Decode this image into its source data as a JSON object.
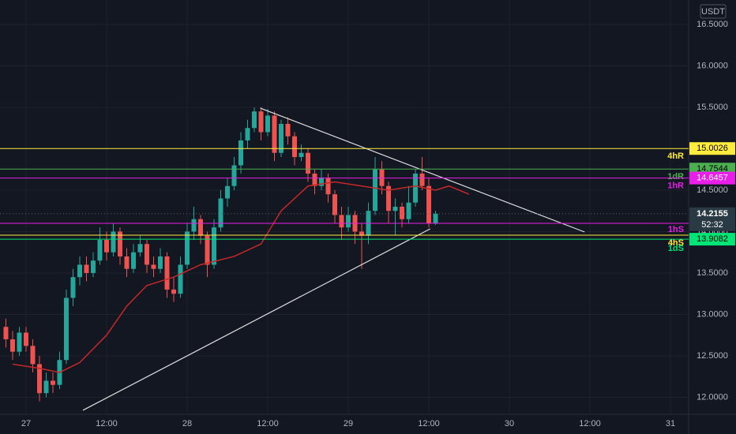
{
  "chart_data": {
    "type": "candlestick",
    "currency": "USDT",
    "up_color": "#26a69a",
    "down_color": "#ef5350",
    "x": [
      -3,
      -2,
      -1,
      0,
      1,
      2,
      3,
      4,
      5,
      6,
      7,
      8,
      9,
      10,
      11,
      12,
      13,
      14,
      15,
      16,
      17,
      18,
      19,
      20,
      21,
      22,
      23,
      24,
      25,
      26,
      27,
      28,
      29,
      30,
      31,
      32,
      33,
      34,
      35,
      36,
      37,
      38,
      39,
      40,
      41,
      42,
      43,
      44,
      45,
      46,
      47,
      48,
      49,
      50,
      51,
      52,
      53,
      54,
      55,
      56,
      57,
      58,
      59,
      60,
      61
    ],
    "open": [
      12.85,
      12.7,
      12.55,
      12.78,
      12.62,
      12.4,
      12.05,
      12.2,
      12.15,
      12.45,
      13.2,
      13.45,
      13.6,
      13.5,
      13.65,
      13.9,
      13.75,
      14.0,
      13.7,
      13.55,
      13.75,
      13.85,
      13.6,
      13.55,
      13.7,
      13.3,
      13.25,
      13.6,
      14.0,
      14.15,
      13.95,
      13.6,
      14.05,
      14.4,
      14.55,
      14.8,
      15.1,
      15.25,
      15.45,
      15.2,
      15.4,
      14.95,
      15.3,
      15.15,
      14.9,
      14.95,
      14.7,
      14.55,
      14.65,
      14.45,
      14.2,
      14.05,
      14.2,
      14.0,
      13.95,
      14.25,
      14.75,
      14.55,
      14.25,
      14.3,
      14.15,
      14.35,
      14.7,
      14.55,
      14.1
    ],
    "high": [
      12.95,
      12.8,
      12.85,
      12.85,
      12.7,
      12.5,
      12.3,
      12.3,
      12.55,
      13.3,
      13.55,
      13.7,
      13.7,
      13.75,
      14.05,
      14.0,
      14.1,
      14.05,
      13.8,
      13.85,
      13.95,
      13.9,
      13.7,
      13.8,
      13.75,
      13.45,
      13.7,
      14.1,
      14.3,
      14.2,
      14.0,
      14.15,
      14.5,
      14.65,
      14.9,
      15.2,
      15.35,
      15.5,
      15.5,
      15.48,
      15.45,
      15.35,
      15.38,
      15.2,
      15.05,
      15.0,
      14.75,
      14.75,
      14.7,
      14.5,
      14.3,
      14.3,
      14.25,
      14.1,
      14.35,
      14.9,
      14.85,
      14.6,
      14.4,
      14.35,
      14.55,
      14.75,
      14.9,
      14.65,
      14.25
    ],
    "low": [
      12.6,
      12.45,
      12.5,
      12.55,
      12.3,
      11.95,
      12.0,
      12.05,
      12.1,
      12.4,
      13.1,
      13.35,
      13.4,
      13.45,
      13.6,
      13.65,
      13.7,
      13.6,
      13.45,
      13.5,
      13.7,
      13.5,
      13.45,
      13.5,
      13.2,
      13.15,
      13.2,
      13.55,
      13.9,
      13.85,
      13.45,
      13.55,
      14.0,
      14.3,
      14.5,
      14.7,
      15.0,
      15.2,
      15.1,
      15.15,
      14.85,
      14.9,
      15.05,
      14.8,
      14.85,
      14.6,
      14.45,
      14.5,
      14.35,
      14.1,
      13.9,
      14.0,
      13.85,
      13.55,
      13.85,
      14.2,
      14.45,
      14.1,
      13.95,
      14.05,
      14.1,
      14.3,
      14.5,
      14.05,
      14.08
    ],
    "close": [
      12.7,
      12.55,
      12.78,
      12.62,
      12.4,
      12.05,
      12.2,
      12.15,
      12.45,
      13.2,
      13.45,
      13.6,
      13.5,
      13.65,
      13.9,
      13.75,
      14.0,
      13.7,
      13.55,
      13.75,
      13.85,
      13.6,
      13.55,
      13.7,
      13.3,
      13.25,
      13.6,
      14.0,
      14.15,
      13.95,
      13.6,
      14.05,
      14.4,
      14.55,
      14.8,
      15.1,
      15.25,
      15.45,
      15.2,
      15.4,
      14.95,
      15.3,
      15.15,
      14.9,
      14.95,
      14.7,
      14.55,
      14.65,
      14.45,
      14.2,
      14.05,
      14.2,
      14.0,
      13.95,
      14.25,
      14.75,
      14.55,
      14.25,
      14.3,
      14.15,
      14.35,
      14.7,
      14.55,
      14.1,
      14.2155
    ],
    "countdown": "52:32",
    "ma": {
      "color": "#c62828",
      "x": [
        -2,
        2,
        5,
        8,
        12,
        15,
        18,
        22,
        26,
        31,
        35,
        38,
        42,
        46,
        50,
        54,
        58,
        61,
        63,
        66
      ],
      "values": [
        12.4,
        12.35,
        12.3,
        12.42,
        12.75,
        13.1,
        13.35,
        13.45,
        13.6,
        13.7,
        13.85,
        14.25,
        14.55,
        14.6,
        14.55,
        14.5,
        14.55,
        14.5,
        14.55,
        14.45
      ]
    },
    "trendlines": [
      {
        "color": "#e0e0e0",
        "x": [
          34.9,
          83.2
        ],
        "values": [
          15.49,
          13.995
        ]
      },
      {
        "color": "#e0e0e0",
        "x": [
          8.47,
          60.2
        ],
        "values": [
          11.843,
          14.033
        ]
      }
    ],
    "levels": [
      {
        "name": "4hR",
        "value": 15.0026,
        "color": "#ffeb3b",
        "text_color": "#000000",
        "show_price": true
      },
      {
        "name": "1dR",
        "value": 14.7544,
        "color": "#4caf50",
        "text_color": "#000000",
        "show_price": true
      },
      {
        "name": "1hR",
        "value": 14.6457,
        "color": "#e91ee9",
        "text_color": "#ffffff",
        "show_price": true
      },
      {
        "name": "1hS",
        "value": 14.1,
        "color": "#e91ee9",
        "text_color": "#ffffff",
        "show_price": false
      },
      {
        "name": "4hS",
        "value": 13.957,
        "color": "#ffeb3b",
        "text_color": "#000000",
        "show_price": false
      },
      {
        "name": "1dS",
        "value": 13.9082,
        "color": "#00e676",
        "text_color": "#000000",
        "show_price": true
      }
    ],
    "xlim": [
      -3.88,
      98.7
    ],
    "xticks": [
      {
        "value": 0,
        "label": "27"
      },
      {
        "value": 12,
        "label": "12:00"
      },
      {
        "value": 24,
        "label": "28"
      },
      {
        "value": 36,
        "label": "12:00"
      },
      {
        "value": 48,
        "label": "29"
      },
      {
        "value": 60,
        "label": "12:00"
      },
      {
        "value": 72,
        "label": "30"
      },
      {
        "value": 84,
        "label": "12:00"
      },
      {
        "value": 96,
        "label": "31"
      }
    ],
    "ylim": [
      11.795,
      16.795
    ],
    "yticks": [
      {
        "value": 12,
        "label": "12.0000"
      },
      {
        "value": 12.5,
        "label": "12.5000"
      },
      {
        "value": 13,
        "label": "13.0000"
      },
      {
        "value": 13.5,
        "label": "13.5000"
      },
      {
        "value": 14,
        "label": "14.0000"
      },
      {
        "value": 14.5,
        "label": "14.5000"
      },
      {
        "value": 15,
        "label": "15.0000"
      },
      {
        "value": 15.5,
        "label": "15.5000"
      },
      {
        "value": 16,
        "label": "16.0000"
      },
      {
        "value": 16.5,
        "label": "16.5000"
      }
    ],
    "grid": true
  }
}
